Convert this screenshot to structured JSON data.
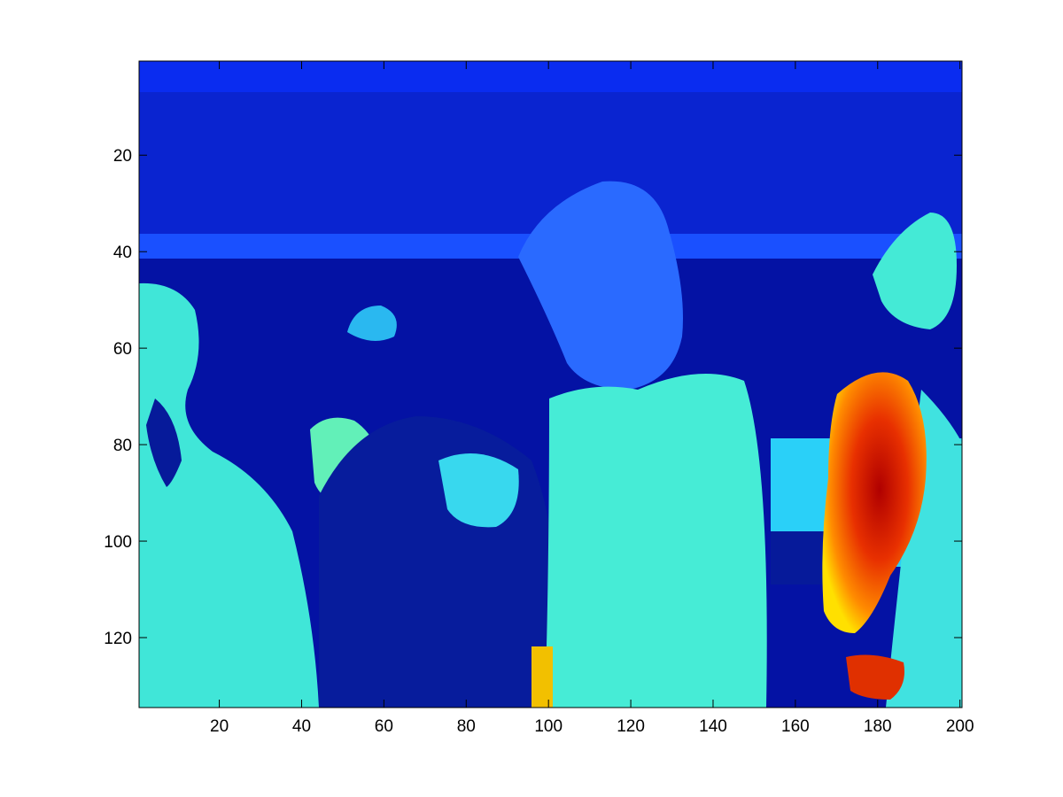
{
  "chart_data": {
    "type": "heatmap",
    "title": "",
    "xlabel": "",
    "ylabel": "",
    "colormap": "jet",
    "xlim": [
      0.5,
      200.5
    ],
    "ylim": [
      0.5,
      134.5
    ],
    "y_direction": "reverse",
    "x_ticks": [
      20,
      40,
      60,
      80,
      100,
      120,
      140,
      160,
      180,
      200
    ],
    "x_tick_labels": [
      "20",
      "40",
      "60",
      "80",
      "100",
      "120",
      "140",
      "160",
      "180",
      "200"
    ],
    "y_ticks": [
      20,
      40,
      60,
      80,
      100,
      120
    ],
    "y_tick_labels": [
      "20",
      "40",
      "60",
      "80",
      "100",
      "120"
    ],
    "grid": false,
    "image_description_values": "thermal image intensities: background mostly low values (dark/medium blue), several human figures at medium values (cyan), one high-value region (red/orange) near x 168-190, y 64-130"
  },
  "colors": {
    "background": "#ffffff",
    "axis": "#000000",
    "low": "#00008f",
    "mid": "#4ef0c8",
    "high": "#e83000"
  }
}
